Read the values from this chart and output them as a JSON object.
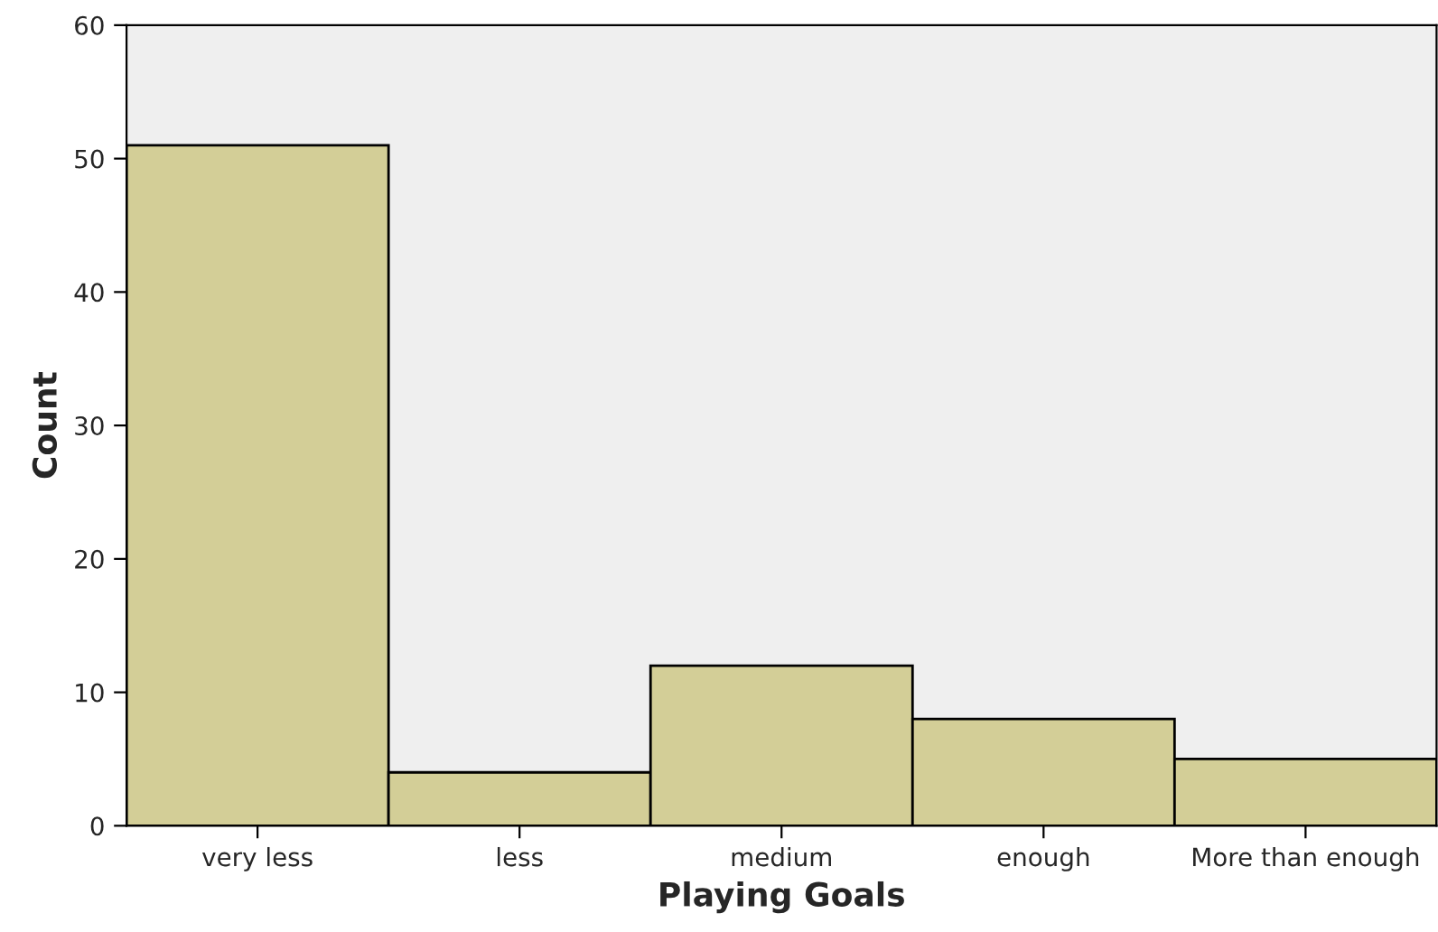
{
  "chart_data": {
    "type": "bar",
    "xlabel": "Playing Goals",
    "ylabel": "Count",
    "categories": [
      "very less",
      "less",
      "medium",
      "enough",
      "More than enough"
    ],
    "values": [
      51,
      4,
      12,
      8,
      5
    ],
    "color": "#d3ce97",
    "ylim": [
      0,
      60
    ],
    "yticks": [
      0,
      10,
      20,
      30,
      40,
      50,
      60
    ],
    "grid": false
  }
}
